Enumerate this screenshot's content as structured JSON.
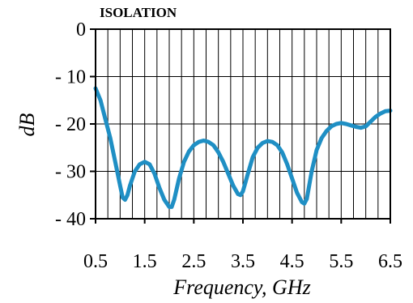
{
  "chart_data": {
    "type": "line",
    "title": "ISOLATION",
    "xlabel": "Frequency, GHz",
    "ylabel": "dB",
    "xlim": [
      0.5,
      6.5
    ],
    "ylim": [
      0,
      40
    ],
    "y_inverted": true,
    "grid": true,
    "x_ticks": [
      0.5,
      1.5,
      2.5,
      3.5,
      4.5,
      5.5,
      6.5
    ],
    "x_tick_labels": [
      "0.5",
      "1.5",
      "2.5",
      "3.5",
      "4.5",
      "5.5",
      "6.5"
    ],
    "y_ticks": [
      0,
      10,
      20,
      30,
      40
    ],
    "y_tick_labels": [
      "0",
      "- 10",
      "- 20",
      "- 30",
      "- 40"
    ],
    "line_color": "#1f8fc4",
    "series": [
      {
        "x": [
          0.5,
          0.6,
          0.7,
          0.8,
          0.9,
          1.0,
          1.05,
          1.1,
          1.15,
          1.2,
          1.3,
          1.4,
          1.5,
          1.6,
          1.7,
          1.8,
          1.9,
          2.0,
          2.05,
          2.1,
          2.2,
          2.3,
          2.4,
          2.5,
          2.6,
          2.7,
          2.8,
          2.9,
          3.0,
          3.1,
          3.2,
          3.3,
          3.4,
          3.45,
          3.5,
          3.6,
          3.7,
          3.8,
          3.9,
          4.0,
          4.1,
          4.2,
          4.3,
          4.4,
          4.5,
          4.6,
          4.7,
          4.75,
          4.8,
          4.9,
          5.0,
          5.1,
          5.2,
          5.3,
          5.4,
          5.5,
          5.6,
          5.7,
          5.8,
          5.9,
          6.0,
          6.1,
          6.2,
          6.3,
          6.4,
          6.5
        ],
        "values": [
          12.5,
          15,
          19,
          23,
          28,
          33,
          35.5,
          36,
          35,
          33,
          30,
          28.5,
          28,
          28.5,
          30.5,
          33.5,
          36,
          37.5,
          37.5,
          36,
          31.5,
          28,
          25.8,
          24.5,
          23.8,
          23.5,
          23.8,
          24.5,
          26,
          28,
          30.5,
          33,
          34.8,
          35,
          34.2,
          30.5,
          27,
          25,
          24,
          23.6,
          23.8,
          24.5,
          26,
          28.5,
          31.5,
          34.5,
          36.5,
          36.8,
          35.8,
          30,
          25.5,
          23,
          21.5,
          20.5,
          20,
          19.8,
          20,
          20.3,
          20.6,
          20.8,
          20.5,
          19.5,
          18.5,
          17.8,
          17.3,
          17.2
        ]
      }
    ]
  }
}
